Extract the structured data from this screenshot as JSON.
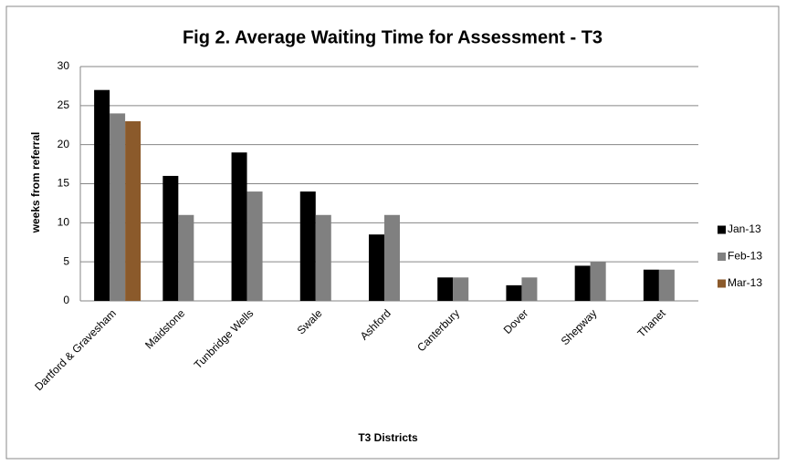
{
  "chart_data": {
    "type": "bar",
    "title": "Fig 2. Average Waiting Time for Assessment - T3",
    "x_label": "T3 Districts",
    "y_label": "weeks from referral",
    "categories": [
      "Dartford & Gravesham",
      "Maidstone",
      "Tunbridge Wells",
      "Swale",
      "Ashford",
      "Canterbury",
      "Dover",
      "Shepway",
      "Thanet"
    ],
    "series": [
      {
        "name": "Jan-13",
        "color": "#000000",
        "values": [
          27,
          16,
          19,
          14,
          8.5,
          3,
          2,
          4.5,
          4
        ]
      },
      {
        "name": "Feb-13",
        "color": "#808080",
        "values": [
          24,
          11,
          14,
          11,
          11,
          3,
          3,
          5,
          4
        ]
      },
      {
        "name": "Mar-13",
        "color": "#8b5a2b",
        "values": [
          23,
          null,
          null,
          null,
          null,
          null,
          null,
          null,
          null
        ]
      }
    ],
    "ylim": [
      0,
      30
    ],
    "yticks": [
      0,
      5,
      10,
      15,
      20,
      25,
      30
    ],
    "grid": true,
    "legend": "right"
  }
}
